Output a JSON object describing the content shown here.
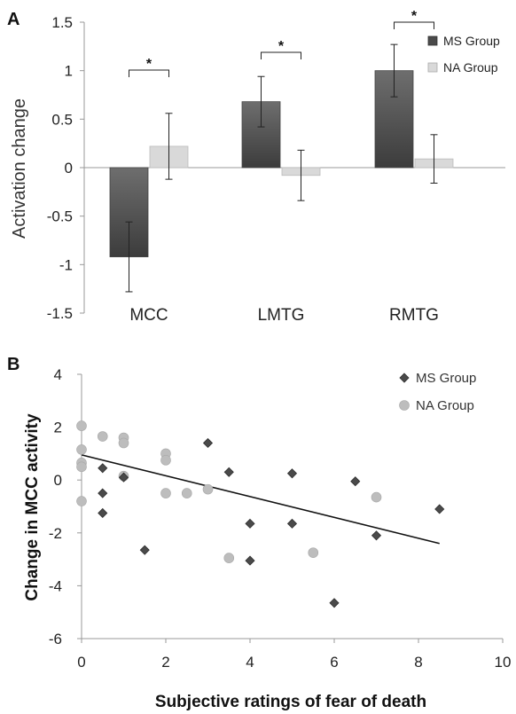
{
  "chart_data": [
    {
      "panel": "A",
      "type": "bar",
      "ylabel": "Activation change",
      "ylim": [
        -1.5,
        1.5
      ],
      "yticks": [
        "1.5",
        "1",
        "0.5",
        "0",
        "-0.5",
        "-1",
        "-1.5"
      ],
      "categories": [
        "MCC",
        "LMTG",
        "RMTG"
      ],
      "series": [
        {
          "name": "MS Group",
          "values": [
            -0.92,
            0.68,
            1.0
          ],
          "errors": [
            0.36,
            0.26,
            0.27
          ],
          "color": "#5a5a5a"
        },
        {
          "name": "NA Group",
          "values": [
            0.22,
            -0.08,
            0.09
          ],
          "errors": [
            0.34,
            0.26,
            0.25
          ],
          "color": "#d9d9d9"
        }
      ],
      "significance": [
        "*",
        "*",
        "*"
      ],
      "legend": "right"
    },
    {
      "panel": "B",
      "type": "scatter",
      "xlabel": "Subjective ratings of fear of death",
      "ylabel": "Change in MCC activity",
      "xlim": [
        0,
        10
      ],
      "ylim": [
        -6,
        4
      ],
      "xticks": [
        "0",
        "2",
        "4",
        "6",
        "8",
        "10"
      ],
      "yticks": [
        "4",
        "2",
        "0",
        "-2",
        "-4",
        "-6"
      ],
      "legend": "top-right",
      "series": [
        {
          "name": "MS Group",
          "marker": "diamond",
          "color": "#4a4a4a",
          "points": [
            [
              0.5,
              0.45
            ],
            [
              0.5,
              -0.5
            ],
            [
              0.5,
              -1.25
            ],
            [
              1,
              0.1
            ],
            [
              1.5,
              -2.65
            ],
            [
              3,
              1.4
            ],
            [
              3.5,
              0.3
            ],
            [
              4,
              -1.65
            ],
            [
              4,
              -3.05
            ],
            [
              5,
              0.25
            ],
            [
              5,
              -1.65
            ],
            [
              6,
              -4.65
            ],
            [
              6.5,
              -0.05
            ],
            [
              7,
              -2.1
            ],
            [
              8.5,
              -1.1
            ]
          ]
        },
        {
          "name": "NA Group",
          "marker": "circle",
          "color": "#bdbdbd",
          "points": [
            [
              0,
              2.05
            ],
            [
              0,
              1.15
            ],
            [
              0,
              0.65
            ],
            [
              0,
              0.5
            ],
            [
              0,
              -0.8
            ],
            [
              0.5,
              1.65
            ],
            [
              1,
              1.6
            ],
            [
              1,
              1.4
            ],
            [
              1,
              0.15
            ],
            [
              2,
              1.0
            ],
            [
              2,
              0.75
            ],
            [
              2,
              -0.5
            ],
            [
              2.5,
              -0.5
            ],
            [
              3,
              -0.35
            ],
            [
              3.5,
              -2.95
            ],
            [
              5.5,
              -2.75
            ],
            [
              7,
              -0.65
            ]
          ]
        }
      ],
      "trendline": [
        [
          0,
          0.95
        ],
        [
          8.5,
          -2.4
        ]
      ]
    }
  ]
}
